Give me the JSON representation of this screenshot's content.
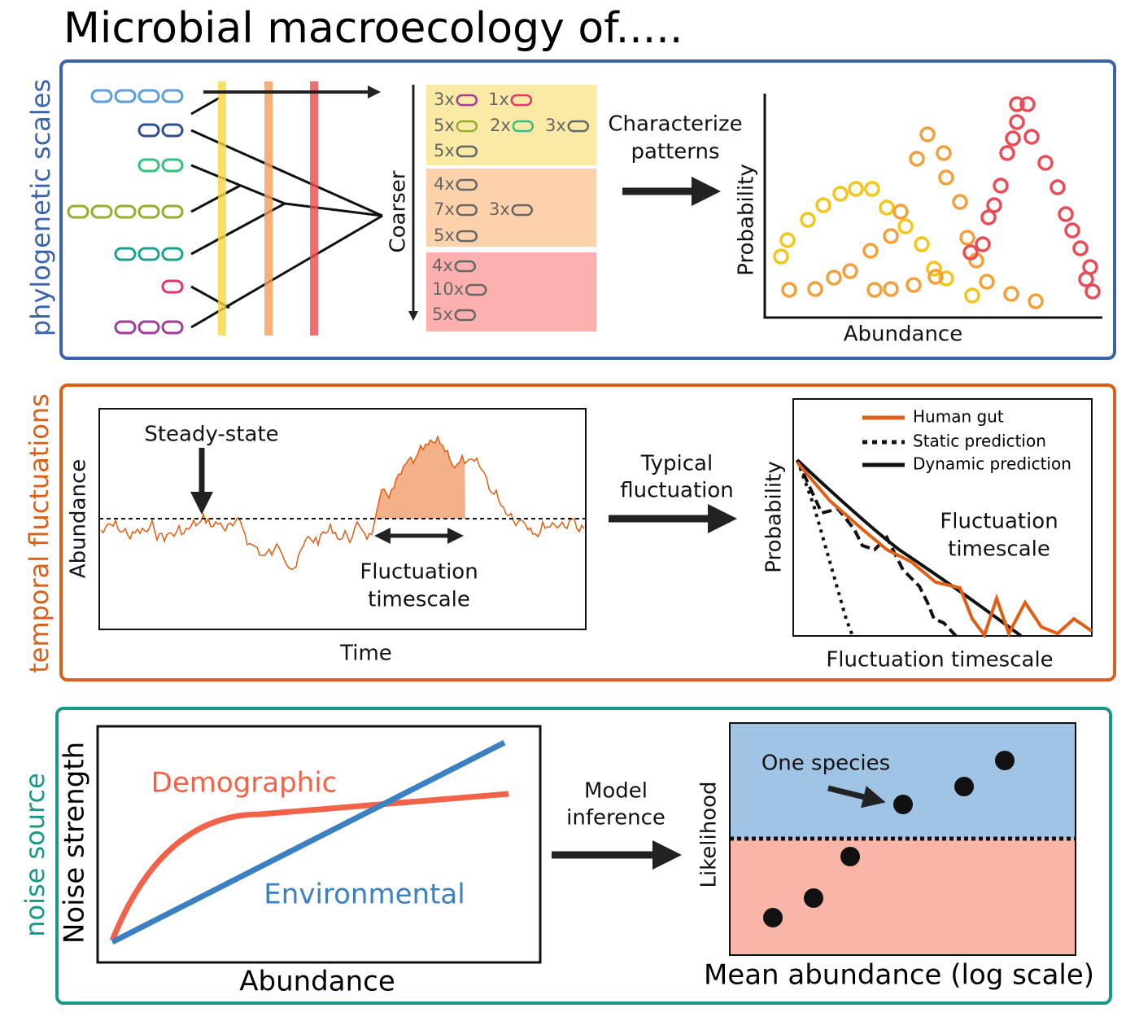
{
  "title": "Microbial macroecology of.....",
  "phylogenetic": {
    "label": "phylogenetic scales",
    "counts": {
      "yellow": [
        "3x",
        "1x",
        "5x",
        "2x",
        "3x",
        "5x"
      ],
      "orange": [
        "4x",
        "7x",
        "3x",
        "5x"
      ],
      "red": [
        "4x",
        "10x",
        "5x"
      ]
    },
    "arrow_label": "Coarser",
    "step": [
      "Characterize",
      "patterns"
    ],
    "y_label": "Probability",
    "x_label": "Abundance"
  },
  "temporal": {
    "label": "temporal fluctuations",
    "left": {
      "y_label": "Abundance",
      "x_label": "Time",
      "annotation": "Steady-state",
      "timescale": [
        "Fluctuation",
        "timescale"
      ]
    },
    "step": [
      "Typical",
      "fluctuation"
    ],
    "right": {
      "legend": [
        "Human gut",
        "Static prediction",
        "Dynamic prediction"
      ],
      "y_label": "Probability",
      "x_label": "Fluctuation timescale",
      "annotation": [
        "Fluctuation",
        "timescale"
      ]
    }
  },
  "noise": {
    "label": "noise source",
    "left": {
      "y_label": "Noise strength",
      "x_label": "Abundance",
      "demographic": "Demographic",
      "environmental": "Environmental"
    },
    "step": [
      "Model",
      "inference"
    ],
    "right": {
      "y_label": "Likelihood",
      "x_label": "Mean abundance (log scale)",
      "annotation": "One species"
    }
  }
}
